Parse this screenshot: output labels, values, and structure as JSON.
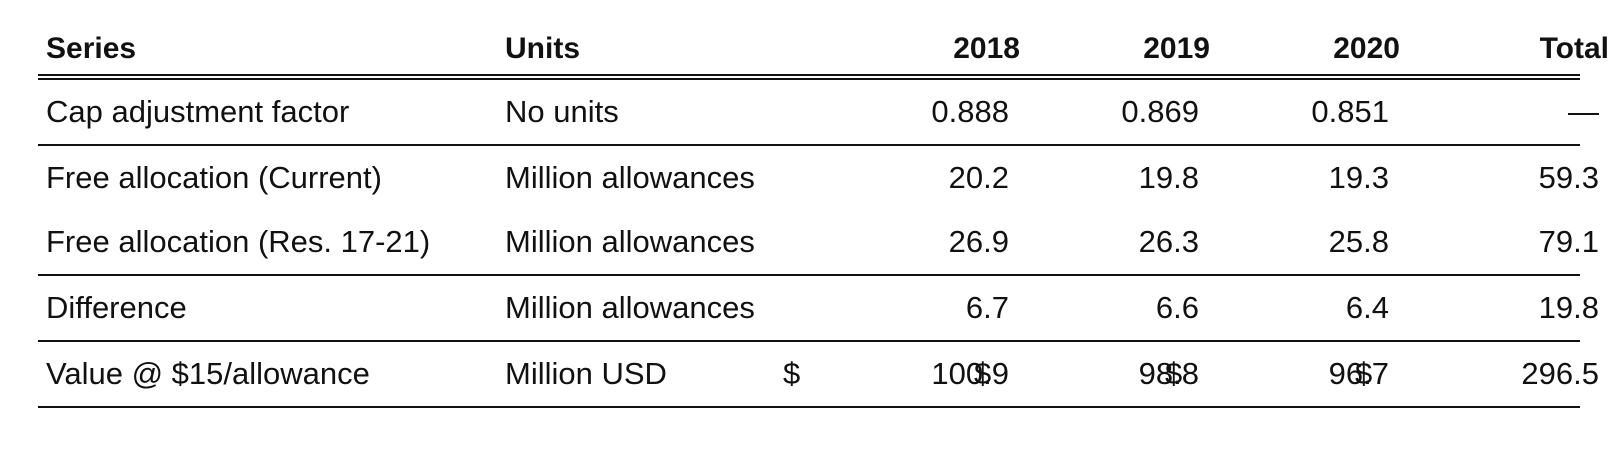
{
  "table": {
    "headers": {
      "series": "Series",
      "units": "Units",
      "y2018": "2018",
      "y2019": "2019",
      "y2020": "2020",
      "total": "Total"
    },
    "rows": [
      {
        "series": "Cap adjustment factor",
        "units": "No units",
        "y2018": "0.888",
        "y2019": "0.869",
        "y2020": "0.851",
        "total": "—"
      },
      {
        "series": "Free allocation (Current)",
        "units": "Million allowances",
        "y2018": "20.2",
        "y2019": "19.8",
        "y2020": "19.3",
        "total": "59.3"
      },
      {
        "series": "Free allocation (Res. 17-21)",
        "units": "Million allowances",
        "y2018": "26.9",
        "y2019": "26.3",
        "y2020": "25.8",
        "total": "79.1"
      },
      {
        "series": "Difference",
        "units": "Million allowances",
        "y2018": "6.7",
        "y2019": "6.6",
        "y2020": "6.4",
        "total": "19.8"
      },
      {
        "series": "Value @ $15/allowance",
        "units": "Million USD",
        "currency_symbol": "$",
        "y2018": "100.9",
        "y2019": "98.8",
        "y2020": "96.7",
        "total": "296.5"
      }
    ]
  }
}
